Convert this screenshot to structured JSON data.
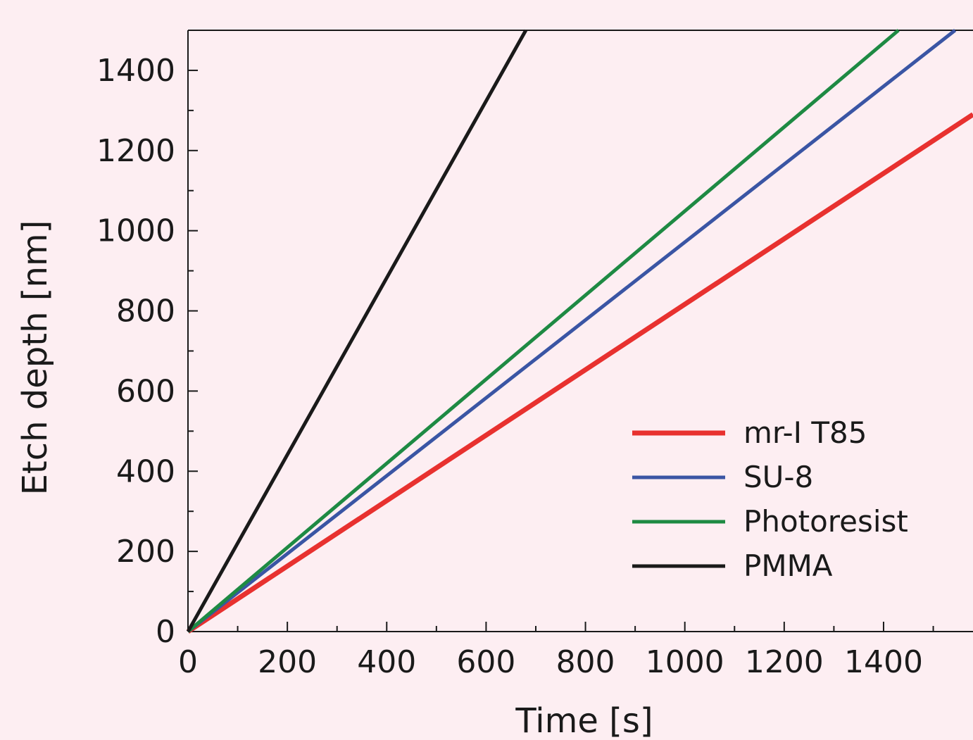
{
  "chart_data": {
    "type": "line",
    "title": "",
    "xlabel": "Time [s]",
    "ylabel": "Etch depth [nm]",
    "xlim": [
      0,
      1580
    ],
    "ylim": [
      0,
      1500
    ],
    "xticks": [
      0,
      200,
      400,
      600,
      800,
      1000,
      1200,
      1400
    ],
    "yticks": [
      0,
      200,
      400,
      600,
      800,
      1000,
      1200,
      1400
    ],
    "xtick_labels": [
      "0",
      "200",
      "400",
      "600",
      "800",
      "1000",
      "1200",
      "1400"
    ],
    "ytick_labels": [
      "0",
      "200",
      "400",
      "600",
      "800",
      "1000",
      "1200",
      "1400"
    ],
    "grid": false,
    "legend_position": "lower-right",
    "series": [
      {
        "name": "mr-I T85",
        "color": "#e8312f",
        "x": [
          0,
          1580
        ],
        "y": [
          0,
          1290
        ]
      },
      {
        "name": "SU-8",
        "color": "#3a55a4",
        "x": [
          0,
          1544
        ],
        "y": [
          0,
          1500
        ]
      },
      {
        "name": "Photoresist",
        "color": "#1e8a43",
        "x": [
          0,
          1430
        ],
        "y": [
          0,
          1500
        ]
      },
      {
        "name": "PMMA",
        "color": "#1a1a1a",
        "x": [
          0,
          680
        ],
        "y": [
          0,
          1500
        ]
      }
    ]
  }
}
